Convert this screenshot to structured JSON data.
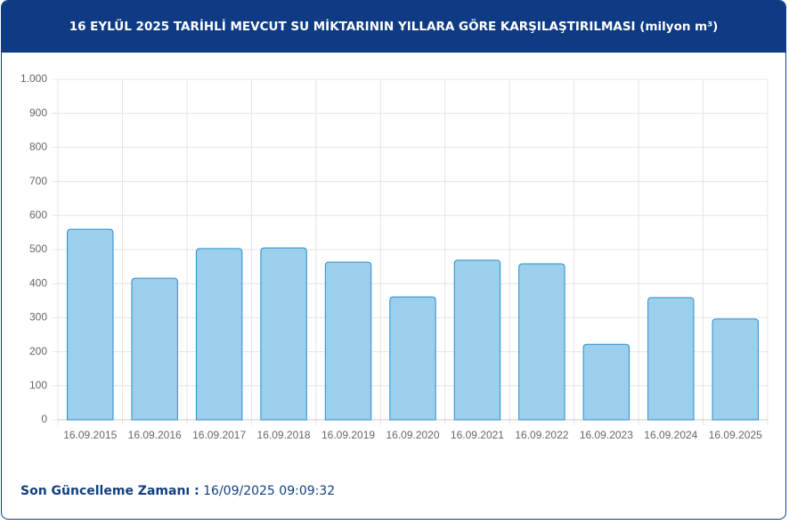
{
  "chart_data": {
    "type": "bar",
    "title": "16 EYLÜL 2025 TARİHLİ MEVCUT SU MİKTARININ YILLARA GÖRE KARŞILAŞTIRILMASI (milyon m³)",
    "categories": [
      "16.09.2015",
      "16.09.2016",
      "16.09.2017",
      "16.09.2018",
      "16.09.2019",
      "16.09.2020",
      "16.09.2021",
      "16.09.2022",
      "16.09.2023",
      "16.09.2024",
      "16.09.2025"
    ],
    "values": [
      560,
      416,
      503,
      505,
      463,
      361,
      469,
      458,
      222,
      359,
      296
    ],
    "color": "#9bcfeb",
    "ylim": [
      0,
      1000
    ],
    "yticks": [
      0,
      100,
      200,
      300,
      400,
      500,
      600,
      700,
      800,
      900,
      {
        "value": 1000,
        "label": "1.000"
      }
    ],
    "grid": true
  },
  "footer": {
    "label": "Son Güncelleme Zamanı :",
    "value": "16/09/2025 09:09:32"
  }
}
